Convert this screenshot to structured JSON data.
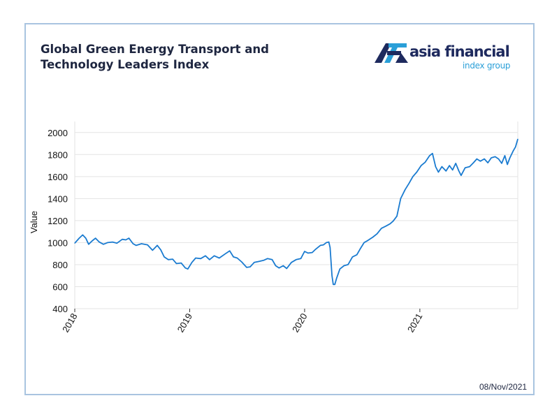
{
  "header": {
    "title_line1": "Global Green Energy Transport and",
    "title_line2": "Technology Leaders Index"
  },
  "logo": {
    "word": "asia financial",
    "sub": "index group",
    "icon": "af-logo-mark",
    "colors": {
      "primary": "#1e2a5e",
      "accent": "#2a9fd8"
    }
  },
  "date_label": "08/Nov/2021",
  "colors": {
    "line": "#1a7bd0",
    "grid": "#e3e3e3",
    "frame": "#a9c4e0",
    "title": "#1e2640"
  },
  "chart_data": {
    "type": "line",
    "title": "Global Green Energy Transport and Technology Leaders Index",
    "xlabel": "",
    "ylabel": "Value",
    "ylim": [
      400,
      2100
    ],
    "yticks": [
      400,
      600,
      800,
      1000,
      1200,
      1400,
      1600,
      1800,
      2000
    ],
    "xlim": [
      "2018-01-01",
      "2021-11-08"
    ],
    "xticks": [
      {
        "date": "2018-01-01",
        "label": "2018"
      },
      {
        "date": "2019-01-01",
        "label": "2019"
      },
      {
        "date": "2020-01-01",
        "label": "2020"
      },
      {
        "date": "2021-01-01",
        "label": "2021"
      }
    ],
    "grid": {
      "horizontal": true,
      "vertical": false
    },
    "series": [
      {
        "points": [
          [
            "2018-01-01",
            995
          ],
          [
            "2018-01-15",
            1040
          ],
          [
            "2018-01-26",
            1070
          ],
          [
            "2018-02-05",
            1040
          ],
          [
            "2018-02-14",
            985
          ],
          [
            "2018-02-25",
            1015
          ],
          [
            "2018-03-08",
            1040
          ],
          [
            "2018-03-20",
            1005
          ],
          [
            "2018-04-02",
            985
          ],
          [
            "2018-04-15",
            1000
          ],
          [
            "2018-05-01",
            1005
          ],
          [
            "2018-05-15",
            995
          ],
          [
            "2018-06-01",
            1030
          ],
          [
            "2018-06-12",
            1025
          ],
          [
            "2018-06-22",
            1040
          ],
          [
            "2018-07-05",
            990
          ],
          [
            "2018-07-15",
            975
          ],
          [
            "2018-08-01",
            990
          ],
          [
            "2018-08-20",
            980
          ],
          [
            "2018-09-05",
            930
          ],
          [
            "2018-09-20",
            975
          ],
          [
            "2018-10-01",
            935
          ],
          [
            "2018-10-12",
            870
          ],
          [
            "2018-10-25",
            845
          ],
          [
            "2018-11-08",
            850
          ],
          [
            "2018-11-20",
            810
          ],
          [
            "2018-12-05",
            815
          ],
          [
            "2018-12-18",
            770
          ],
          [
            "2018-12-26",
            760
          ],
          [
            "2019-01-08",
            820
          ],
          [
            "2019-01-20",
            860
          ],
          [
            "2019-02-05",
            855
          ],
          [
            "2019-02-20",
            880
          ],
          [
            "2019-03-05",
            845
          ],
          [
            "2019-03-20",
            880
          ],
          [
            "2019-04-05",
            860
          ],
          [
            "2019-04-25",
            900
          ],
          [
            "2019-05-08",
            925
          ],
          [
            "2019-05-20",
            870
          ],
          [
            "2019-06-01",
            860
          ],
          [
            "2019-06-15",
            825
          ],
          [
            "2019-07-01",
            775
          ],
          [
            "2019-07-12",
            780
          ],
          [
            "2019-07-25",
            820
          ],
          [
            "2019-08-10",
            830
          ],
          [
            "2019-08-25",
            840
          ],
          [
            "2019-09-05",
            855
          ],
          [
            "2019-09-20",
            845
          ],
          [
            "2019-10-01",
            790
          ],
          [
            "2019-10-12",
            770
          ],
          [
            "2019-10-25",
            790
          ],
          [
            "2019-11-05",
            765
          ],
          [
            "2019-11-20",
            820
          ],
          [
            "2019-12-05",
            845
          ],
          [
            "2019-12-20",
            855
          ],
          [
            "2020-01-01",
            920
          ],
          [
            "2020-01-12",
            905
          ],
          [
            "2020-01-25",
            910
          ],
          [
            "2020-02-05",
            940
          ],
          [
            "2020-02-20",
            975
          ],
          [
            "2020-03-01",
            980
          ],
          [
            "2020-03-10",
            1000
          ],
          [
            "2020-03-18",
            1005
          ],
          [
            "2020-03-22",
            955
          ],
          [
            "2020-03-28",
            700
          ],
          [
            "2020-04-01",
            620
          ],
          [
            "2020-04-06",
            620
          ],
          [
            "2020-04-12",
            680
          ],
          [
            "2020-04-22",
            760
          ],
          [
            "2020-05-05",
            790
          ],
          [
            "2020-05-18",
            800
          ],
          [
            "2020-06-01",
            870
          ],
          [
            "2020-06-15",
            890
          ],
          [
            "2020-06-25",
            940
          ],
          [
            "2020-07-08",
            1000
          ],
          [
            "2020-07-20",
            1020
          ],
          [
            "2020-08-05",
            1050
          ],
          [
            "2020-08-18",
            1080
          ],
          [
            "2020-09-01",
            1130
          ],
          [
            "2020-09-15",
            1150
          ],
          [
            "2020-09-28",
            1170
          ],
          [
            "2020-10-08",
            1195
          ],
          [
            "2020-10-20",
            1240
          ],
          [
            "2020-11-01",
            1400
          ],
          [
            "2020-11-15",
            1480
          ],
          [
            "2020-11-28",
            1540
          ],
          [
            "2020-12-10",
            1600
          ],
          [
            "2020-12-22",
            1640
          ],
          [
            "2021-01-05",
            1700
          ],
          [
            "2021-01-18",
            1730
          ],
          [
            "2021-02-01",
            1790
          ],
          [
            "2021-02-10",
            1810
          ],
          [
            "2021-02-20",
            1690
          ],
          [
            "2021-03-01",
            1640
          ],
          [
            "2021-03-12",
            1690
          ],
          [
            "2021-03-25",
            1650
          ],
          [
            "2021-04-05",
            1700
          ],
          [
            "2021-04-15",
            1660
          ],
          [
            "2021-04-25",
            1720
          ],
          [
            "2021-05-05",
            1650
          ],
          [
            "2021-05-12",
            1610
          ],
          [
            "2021-05-25",
            1680
          ],
          [
            "2021-06-08",
            1690
          ],
          [
            "2021-06-20",
            1725
          ],
          [
            "2021-07-01",
            1760
          ],
          [
            "2021-07-12",
            1740
          ],
          [
            "2021-07-25",
            1760
          ],
          [
            "2021-08-05",
            1725
          ],
          [
            "2021-08-16",
            1770
          ],
          [
            "2021-08-28",
            1780
          ],
          [
            "2021-09-08",
            1760
          ],
          [
            "2021-09-18",
            1720
          ],
          [
            "2021-09-28",
            1790
          ],
          [
            "2021-10-06",
            1710
          ],
          [
            "2021-10-14",
            1770
          ],
          [
            "2021-10-24",
            1830
          ],
          [
            "2021-11-01",
            1870
          ],
          [
            "2021-11-08",
            1940
          ]
        ]
      }
    ]
  }
}
